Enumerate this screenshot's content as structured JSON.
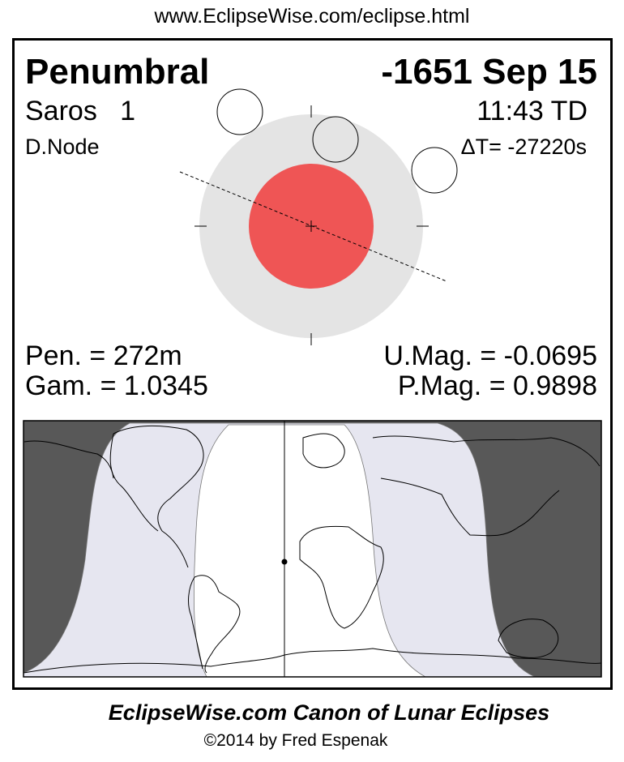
{
  "header": {
    "url": "www.EclipseWise.com/eclipse.html"
  },
  "eclipse": {
    "type": "Penumbral",
    "date": "-1651 Sep 15",
    "saros": "Saros   1",
    "time": "11:43 TD",
    "node": "D.Node",
    "delta_t": "ΔT= -27220s",
    "pen_duration": "Pen. = 272m",
    "gamma": "Gam. = 1.0345",
    "umbral_mag": "U.Mag. = -0.0695",
    "penumbral_mag": "P.Mag. = 0.9898"
  },
  "colors": {
    "umbra": "#ef5555",
    "penumbra": "#e4e4e4",
    "night": "#585858",
    "penumbral_visibility": "#e6e6f0"
  },
  "footer": {
    "title": "EclipseWise.com Canon of Lunar Eclipses",
    "copyright": "©2014 by Fred Espenak"
  }
}
